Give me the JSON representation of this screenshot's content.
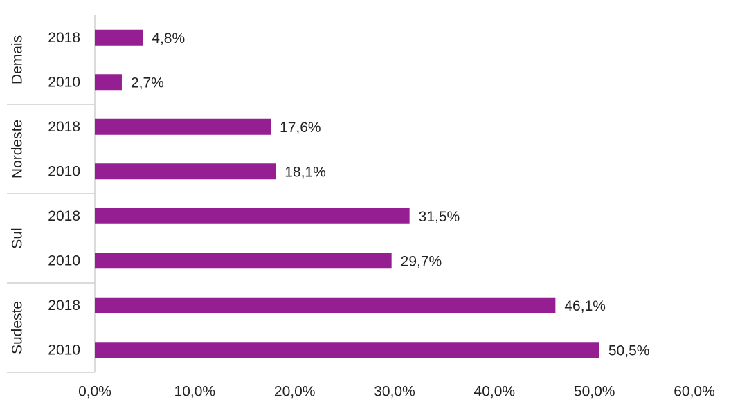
{
  "chart_data": {
    "type": "bar",
    "orientation": "horizontal",
    "bar_color": "#951f92",
    "groups": [
      {
        "name": "Demais",
        "items": [
          {
            "year": "2018",
            "value": 4.8,
            "label": "4,8%"
          },
          {
            "year": "2010",
            "value": 2.7,
            "label": "2,7%"
          }
        ]
      },
      {
        "name": "Nordeste",
        "items": [
          {
            "year": "2018",
            "value": 17.6,
            "label": "17,6%"
          },
          {
            "year": "2010",
            "value": 18.1,
            "label": "18,1%"
          }
        ]
      },
      {
        "name": "Sul",
        "items": [
          {
            "year": "2018",
            "value": 31.5,
            "label": "31,5%"
          },
          {
            "year": "2010",
            "value": 29.7,
            "label": "29,7%"
          }
        ]
      },
      {
        "name": "Sudeste",
        "items": [
          {
            "year": "2018",
            "value": 46.1,
            "label": "46,1%"
          },
          {
            "year": "2010",
            "value": 50.5,
            "label": "50,5%"
          }
        ]
      }
    ],
    "xlim": [
      0,
      60
    ],
    "x_ticks": [
      0,
      10,
      20,
      30,
      40,
      50,
      60
    ],
    "x_tick_labels": [
      "0,0%",
      "10,0%",
      "20,0%",
      "30,0%",
      "40,0%",
      "50,0%",
      "60,0%"
    ],
    "grid": false,
    "legend": "none"
  }
}
